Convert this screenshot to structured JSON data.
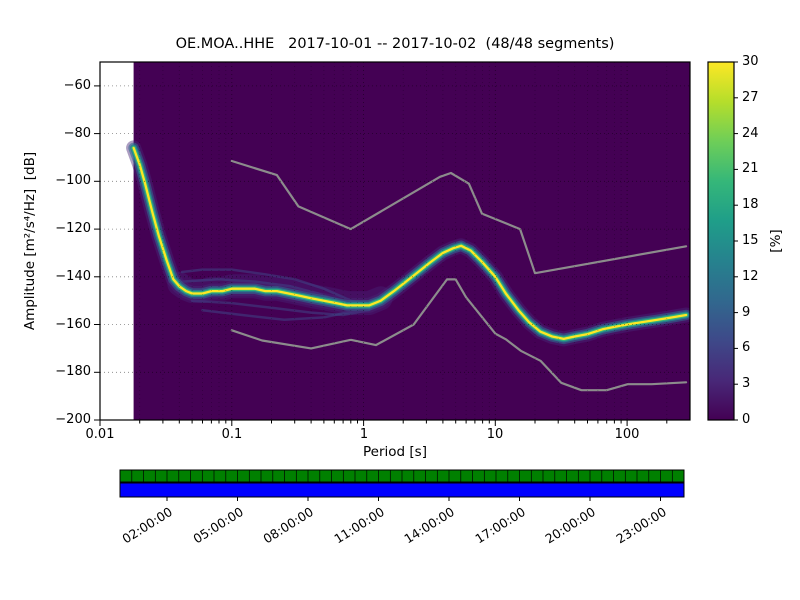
{
  "title": "OE.MOA..HHE   2017-10-01 -- 2017-10-02  (48/48 segments)",
  "axes": {
    "xlabel": "Period [s]",
    "ylabel": "Amplitude [m²/s⁴/Hz]  [dB]"
  },
  "colorbar": {
    "label": "[%]",
    "ticks": [
      0,
      3,
      6,
      9,
      12,
      15,
      18,
      21,
      24,
      27,
      30
    ],
    "clim": [
      0,
      30
    ],
    "colors": [
      "#440154",
      "#482878",
      "#3e4989",
      "#31688e",
      "#26828e",
      "#1f9e89",
      "#35b779",
      "#6ece58",
      "#b5de2b",
      "#fde725"
    ]
  },
  "chart_data": {
    "type": "heatmap",
    "xscale": "log",
    "xlim": [
      0.01,
      300
    ],
    "ylim": [
      -200,
      -50
    ],
    "x_ticks": [
      0.01,
      0.1,
      1,
      10,
      100
    ],
    "y_ticks": [
      -60,
      -80,
      -100,
      -120,
      -140,
      -160,
      -180,
      -200
    ],
    "clim": [
      0,
      30
    ],
    "background": "#440154",
    "noise_model_color": "#8c8c8c",
    "data_start_period": 0.018,
    "mode_curve": [
      [
        0.018,
        -86
      ],
      [
        0.02,
        -93
      ],
      [
        0.022,
        -101
      ],
      [
        0.025,
        -113
      ],
      [
        0.028,
        -123
      ],
      [
        0.032,
        -133
      ],
      [
        0.036,
        -141
      ],
      [
        0.04,
        -144
      ],
      [
        0.045,
        -146
      ],
      [
        0.05,
        -147
      ],
      [
        0.06,
        -147
      ],
      [
        0.07,
        -146
      ],
      [
        0.085,
        -146
      ],
      [
        0.1,
        -145
      ],
      [
        0.12,
        -145
      ],
      [
        0.15,
        -145
      ],
      [
        0.18,
        -146
      ],
      [
        0.22,
        -146
      ],
      [
        0.27,
        -147
      ],
      [
        0.33,
        -148
      ],
      [
        0.4,
        -149
      ],
      [
        0.5,
        -150
      ],
      [
        0.62,
        -151
      ],
      [
        0.75,
        -152
      ],
      [
        0.9,
        -152
      ],
      [
        1.1,
        -152
      ],
      [
        1.35,
        -150
      ],
      [
        1.7,
        -146
      ],
      [
        2.1,
        -142
      ],
      [
        2.6,
        -138
      ],
      [
        3.2,
        -134
      ],
      [
        4.0,
        -130
      ],
      [
        4.8,
        -128
      ],
      [
        5.5,
        -127
      ],
      [
        6.5,
        -129
      ],
      [
        8.0,
        -134
      ],
      [
        10,
        -140
      ],
      [
        12,
        -147
      ],
      [
        15,
        -154
      ],
      [
        18,
        -159
      ],
      [
        22,
        -163
      ],
      [
        27,
        -165
      ],
      [
        33,
        -166
      ],
      [
        40,
        -165
      ],
      [
        50,
        -164
      ],
      [
        65,
        -162
      ],
      [
        80,
        -161
      ],
      [
        100,
        -160
      ],
      [
        130,
        -159
      ],
      [
        170,
        -158
      ],
      [
        220,
        -157
      ],
      [
        280,
        -156
      ]
    ],
    "secondary_branches": [
      [
        [
          0.042,
          -138
        ],
        [
          0.06,
          -137
        ],
        [
          0.1,
          -137
        ],
        [
          0.18,
          -139
        ],
        [
          0.3,
          -141
        ],
        [
          0.5,
          -145
        ],
        [
          0.8,
          -150
        ],
        [
          1.1,
          -152
        ]
      ],
      [
        [
          0.042,
          -142
        ],
        [
          0.08,
          -141
        ],
        [
          0.15,
          -142
        ],
        [
          0.28,
          -144
        ],
        [
          0.45,
          -147
        ],
        [
          0.75,
          -151
        ],
        [
          1.0,
          -152
        ]
      ],
      [
        [
          0.05,
          -150
        ],
        [
          0.1,
          -151
        ],
        [
          0.2,
          -153
        ],
        [
          0.4,
          -155
        ],
        [
          0.7,
          -156
        ],
        [
          1.1,
          -154
        ]
      ],
      [
        [
          0.06,
          -154
        ],
        [
          0.12,
          -156
        ],
        [
          0.25,
          -158
        ],
        [
          0.5,
          -157
        ],
        [
          0.9,
          -154
        ]
      ]
    ],
    "noise_models": {
      "nhnm": [
        [
          0.1,
          -91.5
        ],
        [
          0.22,
          -97.4
        ],
        [
          0.32,
          -110.5
        ],
        [
          0.8,
          -120.0
        ],
        [
          3.8,
          -98.1
        ],
        [
          4.6,
          -96.5
        ],
        [
          6.3,
          -101.0
        ],
        [
          7.9,
          -113.5
        ],
        [
          15.4,
          -120.0
        ],
        [
          20,
          -138.5
        ],
        [
          280,
          -127.2
        ]
      ],
      "nlnm": [
        [
          0.1,
          -162.4
        ],
        [
          0.17,
          -166.7
        ],
        [
          0.4,
          -170.0
        ],
        [
          0.8,
          -166.4
        ],
        [
          1.24,
          -168.6
        ],
        [
          2.4,
          -160.0
        ],
        [
          4.3,
          -141.1
        ],
        [
          5.0,
          -141.1
        ],
        [
          6.0,
          -148.6
        ],
        [
          10.0,
          -163.8
        ],
        [
          12.0,
          -166.2
        ],
        [
          15.6,
          -171.0
        ],
        [
          22,
          -175.2
        ],
        [
          31.6,
          -184.4
        ],
        [
          45,
          -187.5
        ],
        [
          70,
          -187.5
        ],
        [
          101,
          -185.0
        ],
        [
          154,
          -185.0
        ],
        [
          280,
          -184.2
        ]
      ]
    }
  },
  "coverage": {
    "time_labels": [
      "02:00:00",
      "05:00:00",
      "08:00:00",
      "11:00:00",
      "14:00:00",
      "17:00:00",
      "20:00:00",
      "23:00:00"
    ],
    "span_hours": 24,
    "segments": 48,
    "green": "#008000",
    "blue": "#0000ff"
  }
}
